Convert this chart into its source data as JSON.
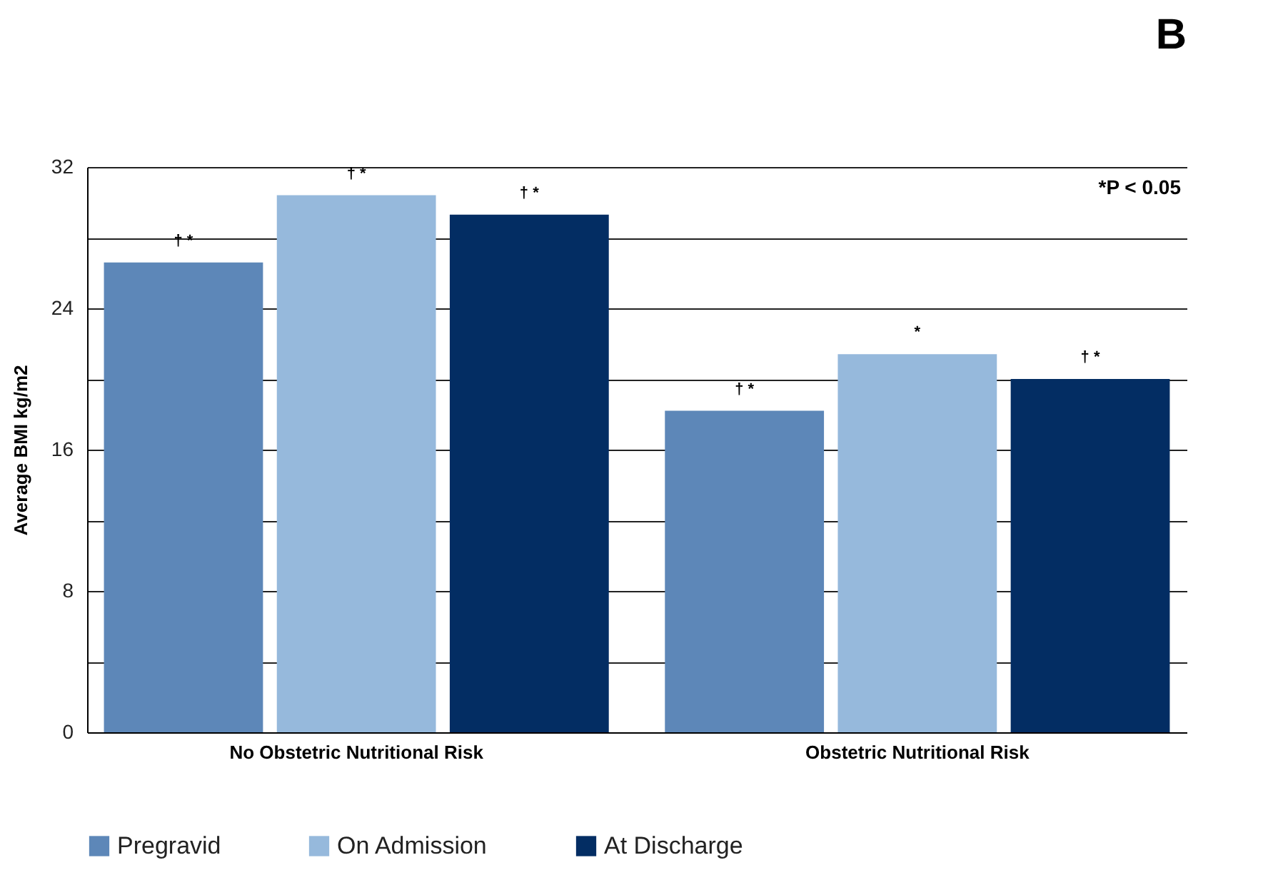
{
  "chart_data": {
    "type": "bar",
    "title": "B",
    "ylabel": "Average BMI kg/m2",
    "categories": [
      "No Obstetric Nutritional Risk",
      "Obstetric Nutritional Risk"
    ],
    "series": [
      {
        "name": "Pregravid",
        "color": "#5d87b8",
        "values": [
          26.6,
          18.2
        ]
      },
      {
        "name": "On Admission",
        "color": "#96b9dc",
        "values": [
          30.4,
          21.4
        ]
      },
      {
        "name": "At Discharge",
        "color": "#032d63",
        "values": [
          29.3,
          20.0
        ]
      }
    ],
    "ylim": [
      0,
      32
    ],
    "yticks": [
      0,
      {
        "value": 4,
        "label": null
      },
      8,
      {
        "value": 12,
        "label": null
      },
      16,
      {
        "value": 20,
        "label": null
      },
      24,
      {
        "value": 28,
        "label": null
      },
      32
    ],
    "grid": true,
    "legend": "bottom",
    "annotations": [
      "†   *",
      "†   *",
      "†   *",
      "†   *",
      "*",
      "†   *",
      "*P < 0.05"
    ]
  }
}
